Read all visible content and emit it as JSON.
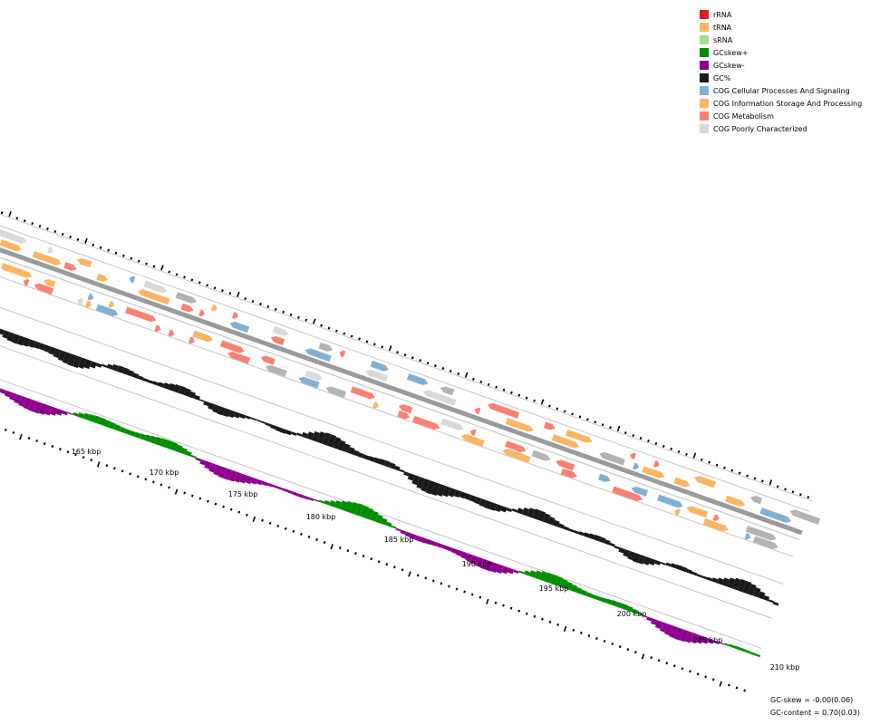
{
  "legend": [
    {
      "label": "rRNA",
      "color": "#e31a1c",
      "icon": "square-swatch"
    },
    {
      "label": "tRNA",
      "color": "#fdb462",
      "icon": "square-swatch"
    },
    {
      "label": "sRNA",
      "color": "#a6d99a",
      "icon": "square-swatch"
    },
    {
      "label": "GCskew+",
      "color": "#008f00",
      "icon": "square-swatch"
    },
    {
      "label": "GCskew-",
      "color": "#8e008e",
      "icon": "square-swatch"
    },
    {
      "label": "GC%",
      "color": "#1a1a1a",
      "icon": "square-swatch"
    },
    {
      "label": "COG Cellular Processes And Signaling",
      "color": "#80b1d3",
      "icon": "square-swatch"
    },
    {
      "label": "COG Information Storage And Processing",
      "color": "#fdb462",
      "icon": "square-swatch"
    },
    {
      "label": "COG Metabolism",
      "color": "#fa8072",
      "icon": "square-swatch"
    },
    {
      "label": "COG Poorly Characterized",
      "color": "#d9d9d9",
      "icon": "square-swatch"
    }
  ],
  "kbp_labels": [
    "165 kbp",
    "170 kbp",
    "175 kbp",
    "180 kbp",
    "185 kbp",
    "190 kbp",
    "195 kbp",
    "200 kbp",
    "205 kbp",
    "210 kbp"
  ],
  "stats": {
    "gc_skew": "GC-skew = -0.00(0.06)",
    "gc_content": "GC-content = 0.70(0.03)"
  },
  "colors": {
    "skew_pos": "#008f00",
    "skew_neg": "#8e008e",
    "gc": "#1a1a1a",
    "cog_cellular": "#80b1d3",
    "cog_info": "#fdb462",
    "cog_metab": "#fa8072",
    "cog_poor": "#d9d9d9",
    "cog_none": "#b3b3b3"
  }
}
